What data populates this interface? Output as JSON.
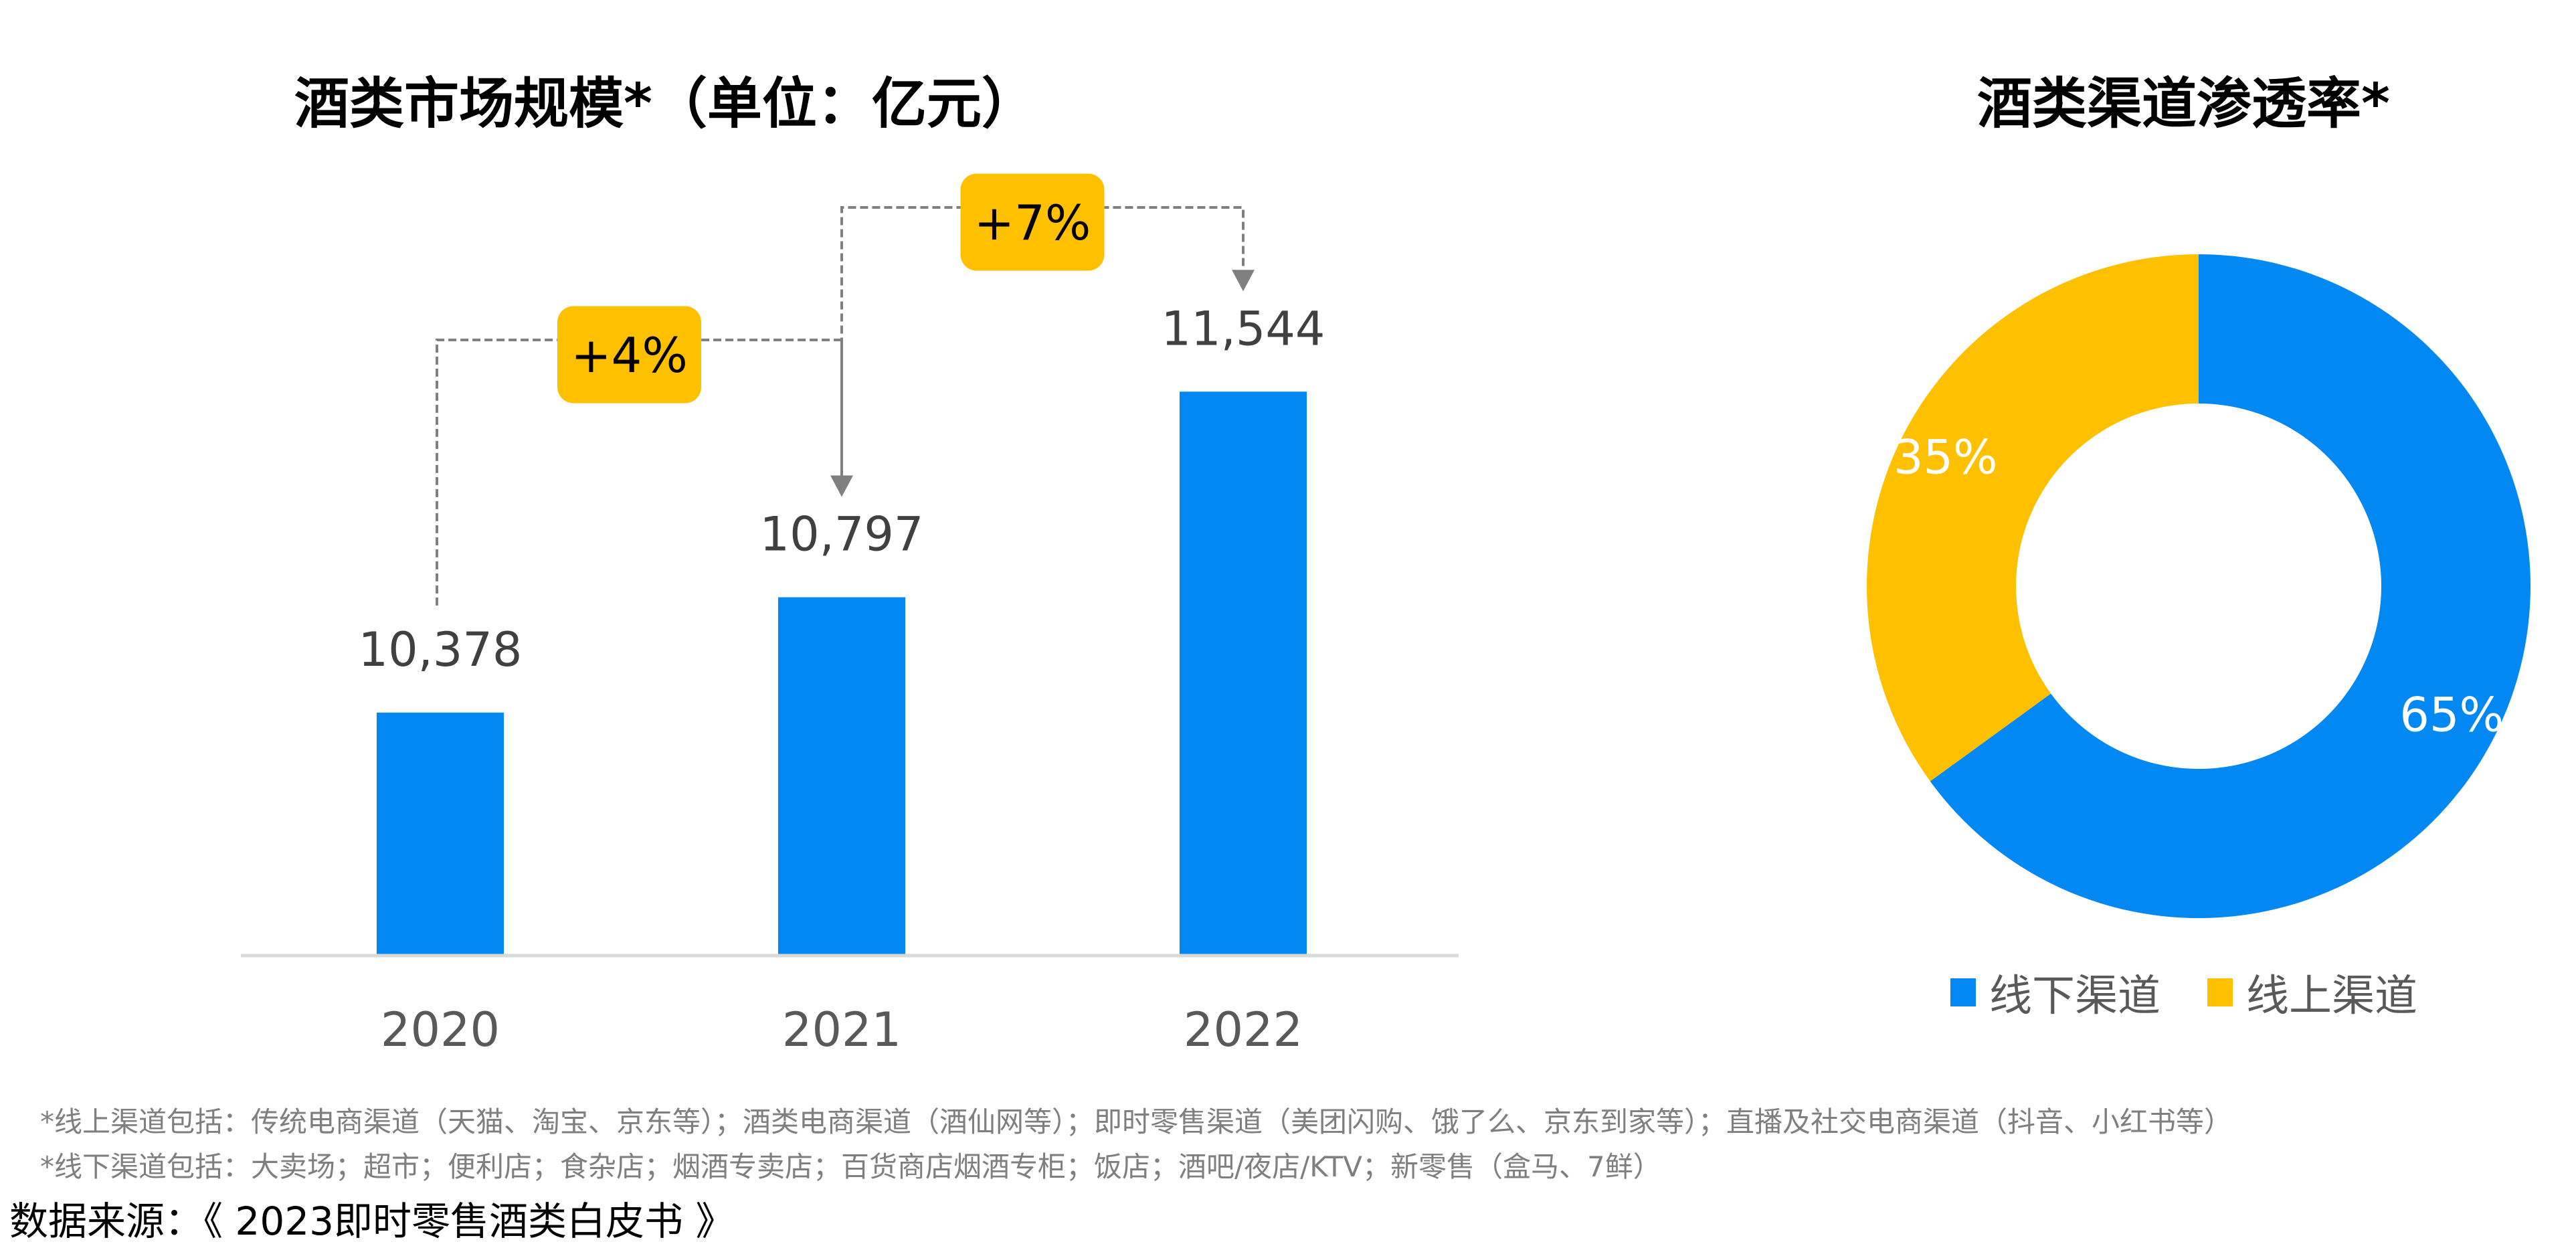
{
  "bar_chart": {
    "title": "酒类市场规模*（单位：亿元）"
  },
  "donut_chart": {
    "title": "酒类渠道渗透率*"
  },
  "notes": {
    "online": "*线上渠道包括：传统电商渠道（天猫、淘宝、京东等）；酒类电商渠道（酒仙网等）；即时零售渠道（美团闪购、饿了么、京东到家等）；直播及社交电商渠道（抖音、小红书等）",
    "offline": "*线下渠道包括：大卖场；超市；便利店；食杂店；烟酒专卖店；百货商店烟酒专柜；饭店；酒吧/夜店/KTV；新零售（盒马、7鲜）"
  },
  "source": "数据来源：《 2023即时零售酒类白皮书 》",
  "colors": {
    "blue": "#0288F2",
    "yellow": "#FFC000",
    "axis": "#D9D9D9",
    "connector": "#808080"
  },
  "chart_data": [
    {
      "type": "bar",
      "title": "酒类市场规模*（单位：亿元）",
      "xlabel": "",
      "ylabel": "亿元",
      "categories": [
        "2020",
        "2021",
        "2022"
      ],
      "values": [
        10378,
        10797,
        11544
      ],
      "value_labels": [
        "10,378",
        "10,797",
        "11,544"
      ],
      "ylim": [
        9500,
        11800
      ],
      "grid": false,
      "annotations": [
        {
          "from": "2020",
          "to": "2021",
          "label": "+4%"
        },
        {
          "from": "2021",
          "to": "2022",
          "label": "+7%"
        }
      ]
    },
    {
      "type": "pie",
      "variant": "donut",
      "title": "酒类渠道渗透率*",
      "slices": [
        {
          "name": "线下渠道",
          "value": 65,
          "label": "65%"
        },
        {
          "name": "线上渠道",
          "value": 35,
          "label": "35%"
        }
      ],
      "legend": [
        "线下渠道",
        "线上渠道"
      ],
      "legend_position": "bottom"
    }
  ]
}
